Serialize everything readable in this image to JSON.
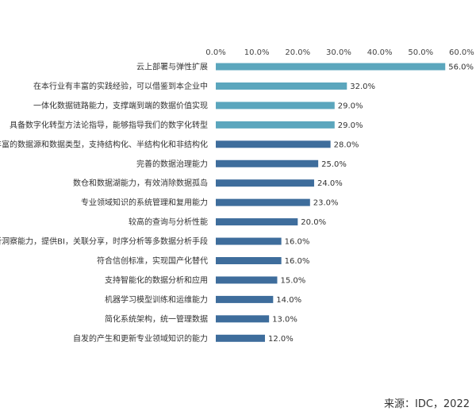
{
  "chart_data": {
    "type": "bar",
    "orientation": "horizontal",
    "categories": [
      "云上部署与弹性扩展",
      "在本行业有丰富的实践经验，可以借鉴到本企业中",
      "一体化数据链路能力，支撑端到端的数据价值实现",
      "具备数字化转型方法论指导，能够指导我们的数字化转型",
      "丰富的数据源和数据类型，支持结构化、半结构化和非结构化",
      "完善的数据治理能力",
      "数仓和数据湖能力，有效消除数据孤岛",
      "专业领域知识的系统管理和复用能力",
      "较高的查询与分析性能",
      "分析洞察能力，提供BI，关联分享，时序分析等多数据分析手段",
      "符合信创标准，实现国产化替代",
      "支持智能化的数据分析和应用",
      "机器学习模型训练和运维能力",
      "简化系统架构，统一管理数据",
      "自发的产生和更新专业领域知识的能力"
    ],
    "values": [
      56.0,
      32.0,
      29.0,
      29.0,
      28.0,
      25.0,
      24.0,
      23.0,
      20.0,
      16.0,
      16.0,
      15.0,
      14.0,
      13.0,
      12.0
    ],
    "value_labels": [
      "56.0%",
      "32.0%",
      "29.0%",
      "29.0%",
      "28.0%",
      "25.0%",
      "24.0%",
      "23.0%",
      "20.0%",
      "16.0%",
      "16.0%",
      "15.0%",
      "14.0%",
      "13.0%",
      "12.0%"
    ],
    "bar_colors": [
      "#5ba6bd",
      "#5ba6bd",
      "#5ba6bd",
      "#5ba6bd",
      "#3e6d9c",
      "#3e6d9c",
      "#3e6d9c",
      "#3e6d9c",
      "#3e6d9c",
      "#3e6d9c",
      "#3e6d9c",
      "#3e6d9c",
      "#3e6d9c",
      "#3e6d9c",
      "#3e6d9c"
    ],
    "x_ticks": [
      0,
      10,
      20,
      30,
      40,
      50,
      60
    ],
    "x_tick_labels": [
      "0.0%",
      "10.0%",
      "20.0%",
      "30.0%",
      "40.0%",
      "50.0%",
      "60.0%"
    ],
    "xlim": [
      0,
      60
    ],
    "x_axis_position": "top",
    "grid": false,
    "title": "",
    "xlabel": "",
    "ylabel": ""
  },
  "source": "来源：IDC，2022"
}
